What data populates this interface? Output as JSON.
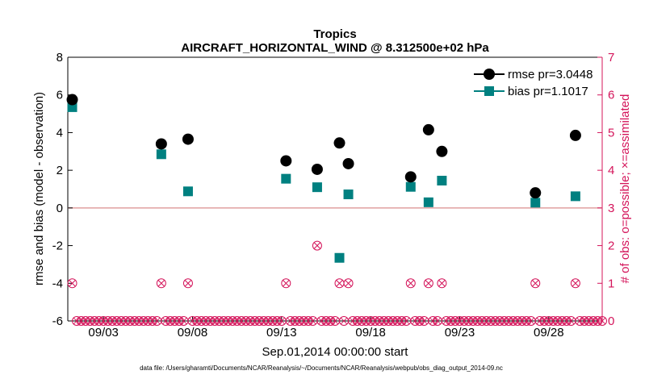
{
  "chart_data": {
    "type": "scatter",
    "title": "Tropics",
    "subtitle": "AIRCRAFT_HORIZONTAL_WIND @ 8.312500e+02 hPa",
    "xlabel": "Sep.01,2014 00:00:00 start",
    "ylabel_left": "rmse and bias (model - observation)",
    "ylabel_right": "# of obs: o=possible; ×=assimilated",
    "footnote": "data file: /Users/gharamti/Documents/NCAR/Reanalysis/~/Documents/NCAR/Reanalysis/webpub/obs_diag_output_2014-09.nc",
    "xlim": [
      1.0,
      31.0
    ],
    "ylim_left": [
      -6,
      8
    ],
    "ylim_right": [
      0,
      7
    ],
    "yticks_left": [
      -6,
      -4,
      -2,
      0,
      2,
      4,
      6,
      8
    ],
    "yticks_right": [
      0,
      1,
      2,
      3,
      4,
      5,
      6,
      7
    ],
    "xticks": [
      3,
      8,
      13,
      18,
      23,
      28
    ],
    "xtick_labels": [
      "09/03",
      "09/08",
      "09/13",
      "09/18",
      "09/23",
      "09/28"
    ],
    "zero_line": 0,
    "colors": {
      "rmse": "#000000",
      "bias": "#008080",
      "obs": "#d4145a",
      "zero_line": "#e0a0a0",
      "axis": "#000000"
    },
    "series": [
      {
        "name": "rmse pr=3.0448",
        "axis": "left",
        "marker": "circle",
        "x": [
          1.25,
          6.25,
          7.75,
          13.25,
          15.0,
          16.25,
          16.75,
          20.25,
          21.25,
          22.0,
          27.25,
          29.5
        ],
        "values": [
          5.75,
          3.4,
          3.65,
          2.5,
          2.05,
          3.45,
          2.35,
          1.65,
          4.15,
          3.0,
          0.8,
          3.85
        ]
      },
      {
        "name": "bias pr=1.1017",
        "axis": "left",
        "marker": "square",
        "x": [
          1.25,
          6.25,
          7.75,
          13.25,
          15.0,
          16.25,
          16.75,
          20.25,
          21.25,
          22.0,
          27.25,
          29.5
        ],
        "values": [
          5.35,
          2.85,
          0.88,
          1.55,
          1.1,
          -2.65,
          0.72,
          1.12,
          0.3,
          1.45,
          0.28,
          0.62
        ]
      },
      {
        "name": "obs possible / assimilated",
        "axis": "right",
        "marker": "circle-x",
        "x": [
          1.25,
          6.25,
          7.75,
          13.25,
          15.0,
          16.25,
          16.75,
          20.25,
          21.25,
          22.0,
          27.25,
          29.5
        ],
        "values": [
          1,
          1,
          1,
          1,
          2,
          1,
          1,
          1,
          1,
          1,
          1,
          1
        ]
      }
    ],
    "zero_obs_x_start": 1.25,
    "zero_obs_x_step": 0.25,
    "zero_obs_x_end": 31.0,
    "legend_position": "top-right"
  }
}
